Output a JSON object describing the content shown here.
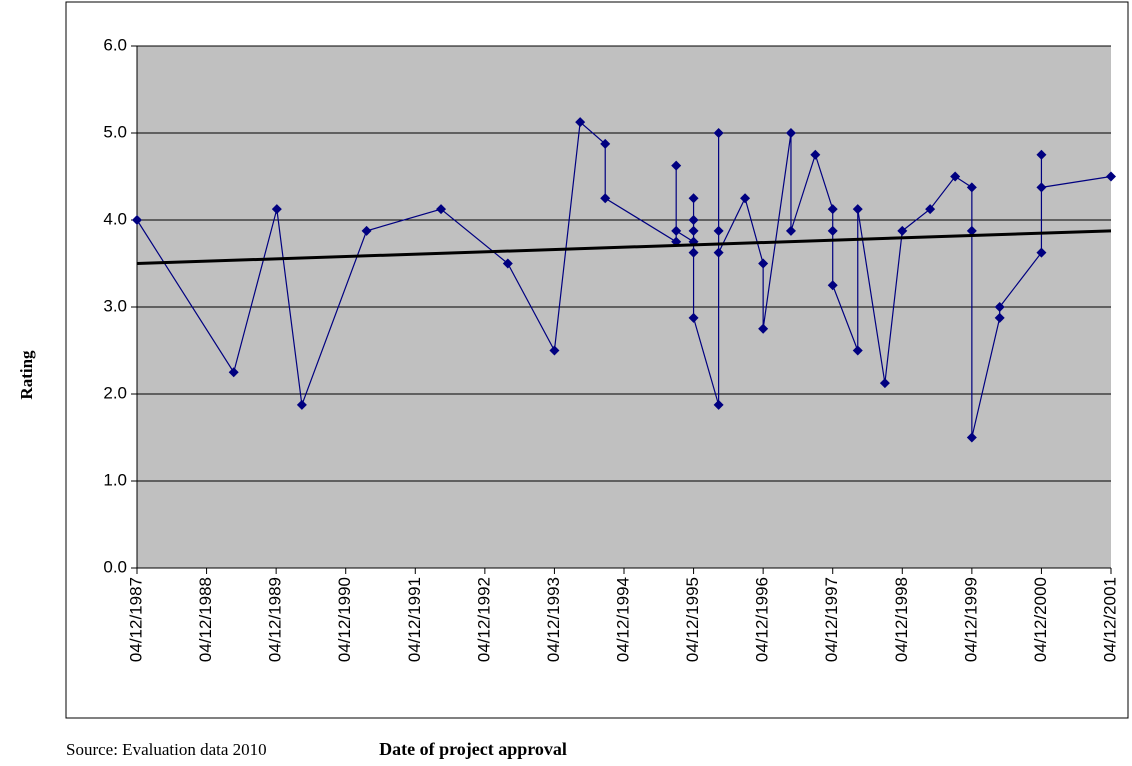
{
  "chart_data": {
    "type": "line",
    "y_label": "Rating",
    "x_label": "Date of project approval",
    "source": "Source: Evaluation data 2010",
    "xlim": [
      1987,
      2001
    ],
    "xticks": [
      {
        "value": 1987,
        "label": "04/12/1987"
      },
      {
        "value": 1988,
        "label": "04/12/1988"
      },
      {
        "value": 1989,
        "label": "04/12/1989"
      },
      {
        "value": 1990,
        "label": "04/12/1990"
      },
      {
        "value": 1991,
        "label": "04/12/1991"
      },
      {
        "value": 1992,
        "label": "04/12/1992"
      },
      {
        "value": 1993,
        "label": "04/12/1993"
      },
      {
        "value": 1994,
        "label": "04/12/1994"
      },
      {
        "value": 1995,
        "label": "04/12/1995"
      },
      {
        "value": 1996,
        "label": "04/12/1996"
      },
      {
        "value": 1997,
        "label": "04/12/1997"
      },
      {
        "value": 1998,
        "label": "04/12/1998"
      },
      {
        "value": 1999,
        "label": "04/12/1999"
      },
      {
        "value": 2000,
        "label": "04/12/2000"
      },
      {
        "value": 2001,
        "label": "04/12/2001"
      }
    ],
    "ylim": [
      0,
      6
    ],
    "yticks": [
      {
        "value": 0,
        "label": "0.0"
      },
      {
        "value": 1,
        "label": "1.0"
      },
      {
        "value": 2,
        "label": "2.0"
      },
      {
        "value": 3,
        "label": "3.0"
      },
      {
        "value": 4,
        "label": "4.0"
      },
      {
        "value": 5,
        "label": "5.0"
      },
      {
        "value": 6,
        "label": "6.0"
      }
    ],
    "grid": true,
    "plot_background": "#c0c0c0",
    "series": [
      {
        "color": "#000080",
        "x": [
          1987.0,
          1988.39,
          1989.01,
          1989.37,
          1990.3,
          1991.37,
          1992.33,
          1993.0,
          1993.37,
          1993.73,
          1993.73,
          1994.75,
          1994.75,
          1994.75,
          1995.0,
          1995.0,
          1995.0,
          1995.0,
          1995.0,
          1995.0,
          1995.36,
          1995.36,
          1995.36,
          1995.36,
          1995.74,
          1996.0,
          1996.0,
          1996.4,
          1996.4,
          1996.75,
          1997.0,
          1997.0,
          1997.0,
          1997.36,
          1997.36,
          1997.75,
          1998.0,
          1998.4,
          1998.76,
          1999.0,
          1999.0,
          1999.0,
          1999.4,
          1999.4,
          2000.0,
          2000.0,
          2000.0,
          2001.0
        ],
        "values": [
          4.0,
          2.25,
          4.125,
          1.875,
          3.875,
          4.125,
          3.5,
          2.5,
          5.125,
          4.875,
          4.25,
          3.75,
          4.625,
          3.875,
          3.75,
          4.25,
          4.0,
          3.875,
          3.625,
          2.875,
          1.875,
          3.875,
          5.0,
          3.625,
          4.25,
          3.5,
          2.75,
          5.0,
          3.875,
          4.75,
          4.125,
          3.875,
          3.25,
          2.5,
          4.125,
          2.125,
          3.875,
          4.125,
          4.5,
          4.375,
          3.875,
          1.5,
          2.875,
          3.0,
          3.625,
          4.75,
          4.375,
          4.5
        ]
      }
    ],
    "trendline": {
      "color": "#000000",
      "x": [
        1987,
        2001
      ],
      "values": [
        3.5,
        3.875
      ]
    }
  }
}
